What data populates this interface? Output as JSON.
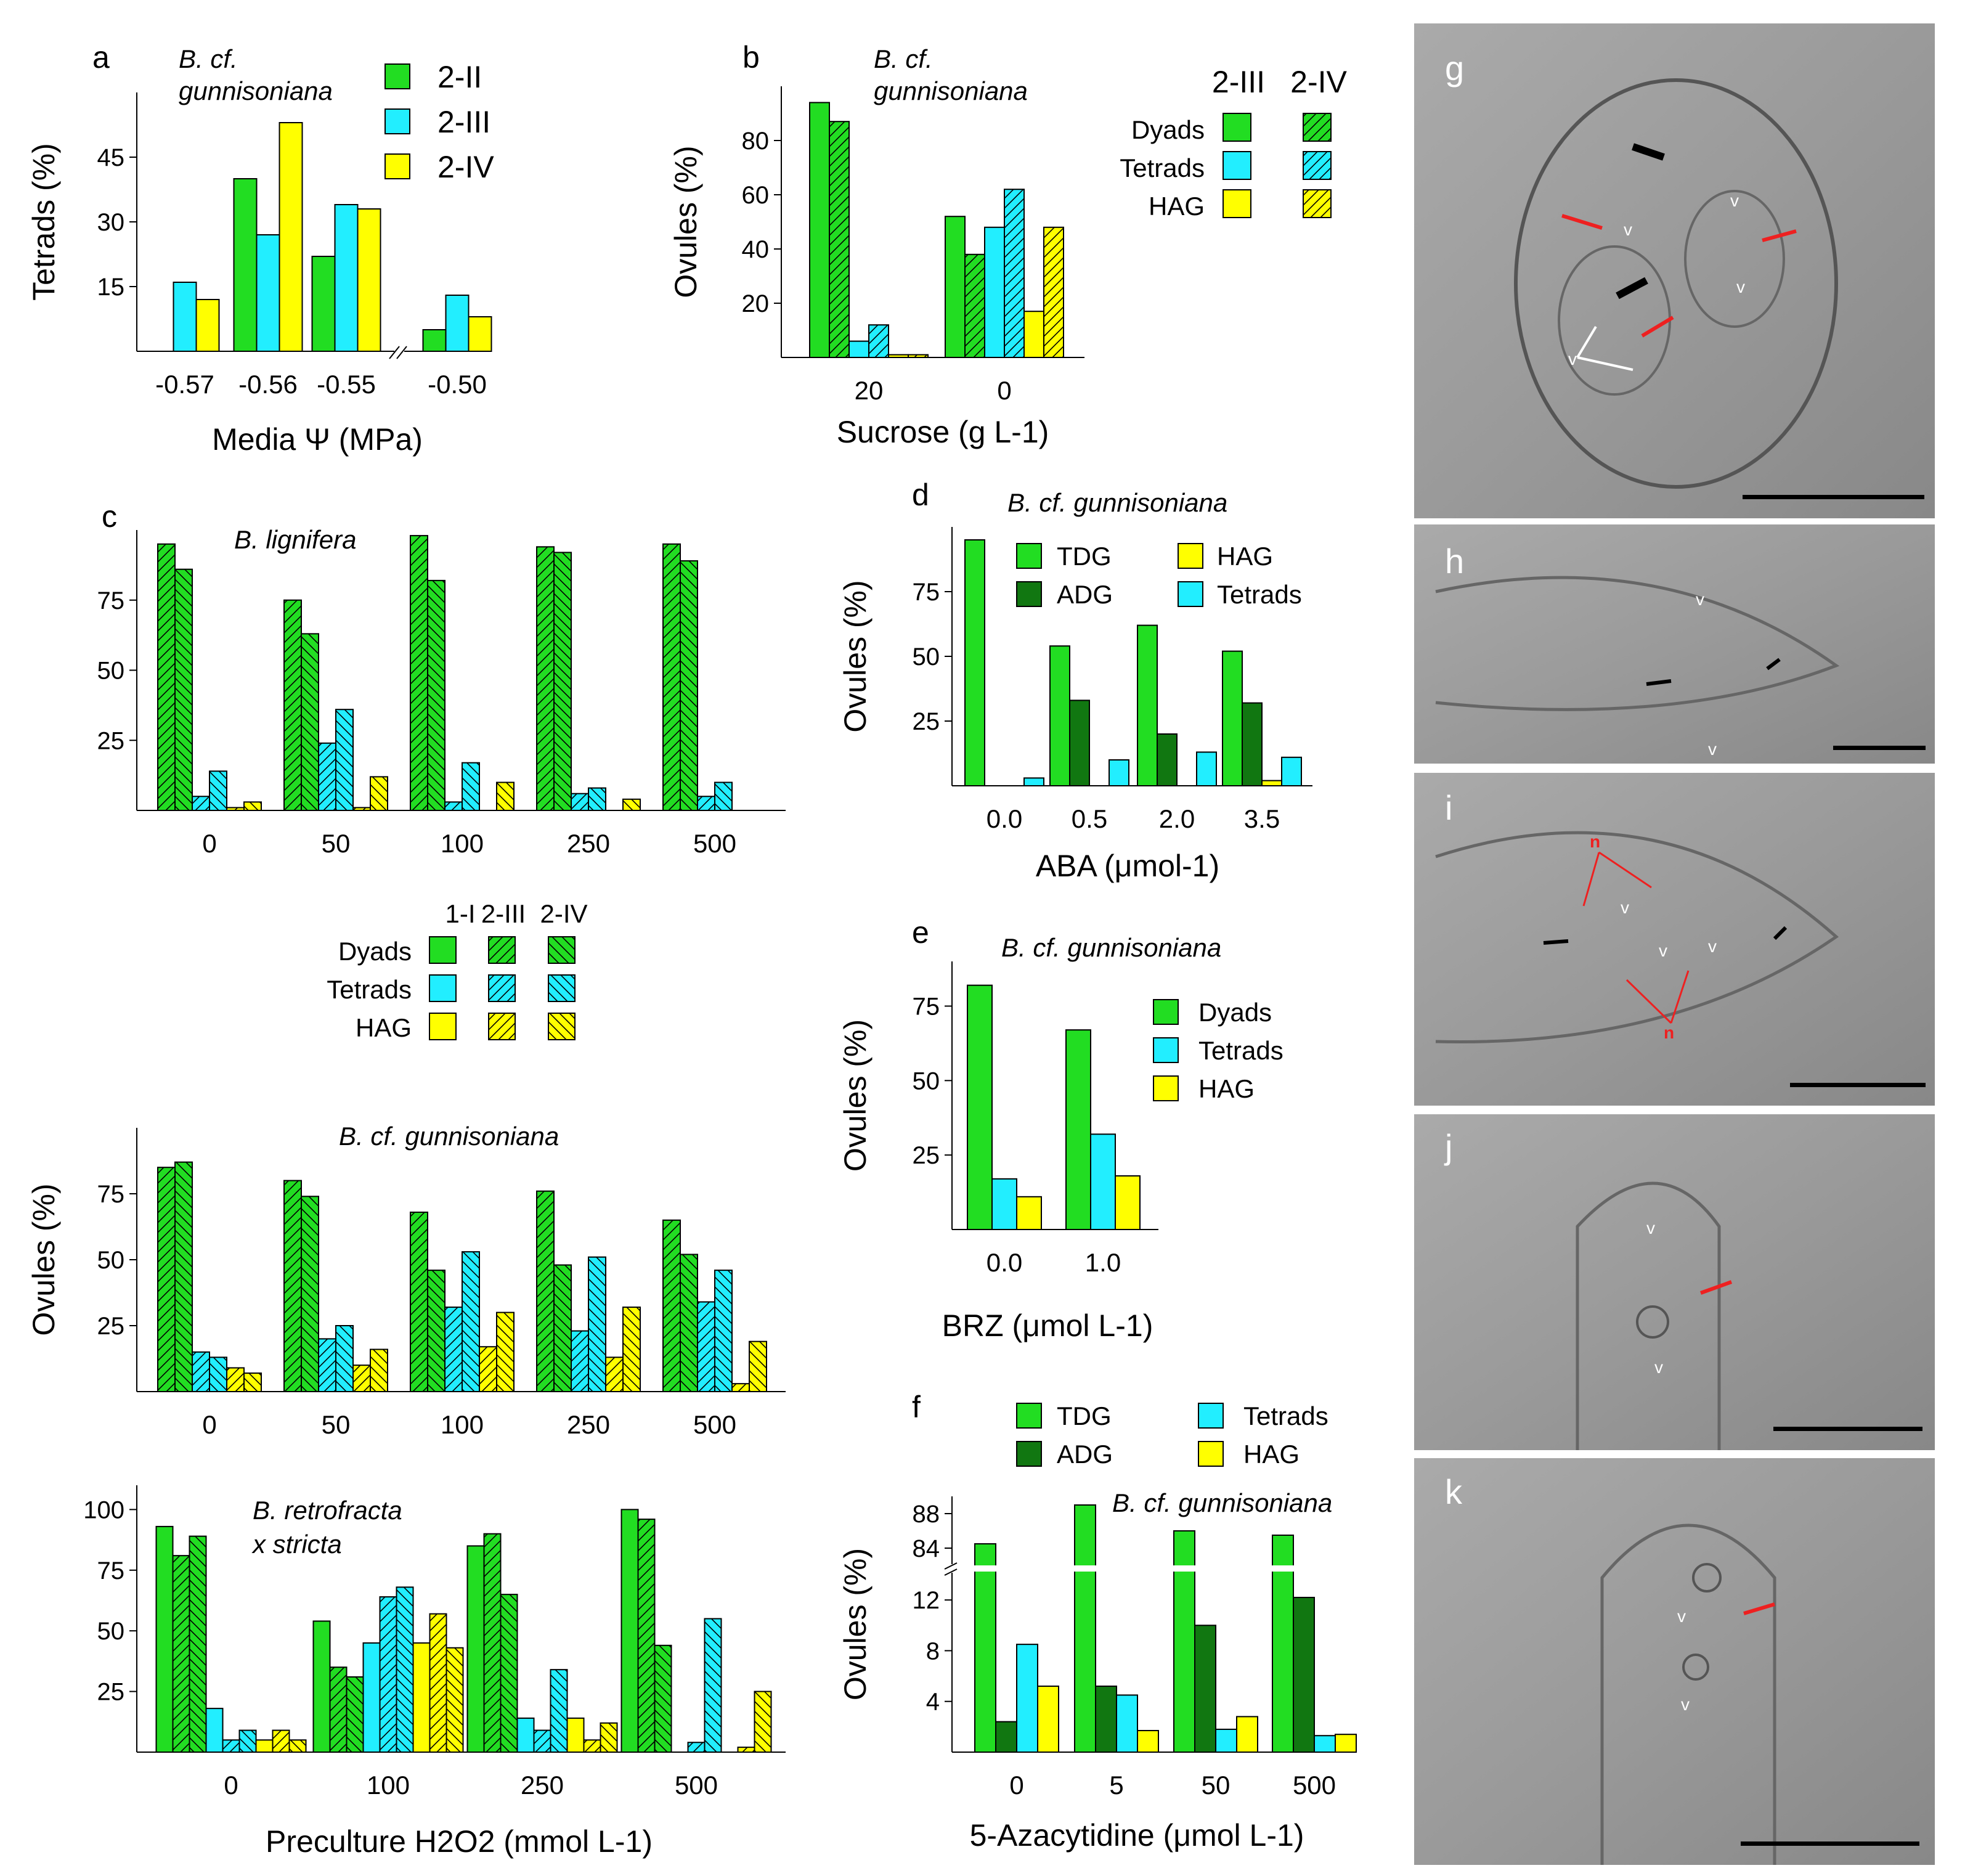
{
  "colors": {
    "green": "#22DD22",
    "dark_green": "#117711",
    "cyan": "#22EEFF",
    "yellow": "#FFFF00",
    "white": "#FFFFFF"
  },
  "patterns": {
    "solid": "solid",
    "hatch_fwd": "hatch_fwd",
    "hatch_back": "hatch_back",
    "chevron": "chevron"
  },
  "micrograph_panels": [
    {
      "letter": "g",
      "labels": [
        "v",
        "v",
        "v",
        "v"
      ]
    },
    {
      "letter": "h",
      "labels": [
        "v",
        "v"
      ]
    },
    {
      "letter": "i",
      "labels": [
        "n",
        "n",
        "v",
        "v",
        "v"
      ]
    },
    {
      "letter": "j",
      "labels": [
        "v",
        "v"
      ]
    },
    {
      "letter": "k",
      "labels": [
        "v",
        "v"
      ]
    }
  ],
  "chart_data": [
    {
      "id": "a",
      "type": "bar",
      "panel_letter": "a",
      "title": "B. cf. gunnisoniana",
      "title_lines": [
        "B. cf.",
        "gunnisoniana"
      ],
      "xlabel": "Media Ψ (MPa)",
      "ylabel": "Tetrads (%)",
      "ylim": [
        0,
        60
      ],
      "yticks": [
        15,
        30,
        45
      ],
      "axis_break_after": 2,
      "categories": [
        "-0.57",
        "-0.56",
        "-0.55",
        "-0.50"
      ],
      "series": [
        {
          "name": "2-II",
          "color": "green",
          "pattern": "solid",
          "values": [
            null,
            40,
            22,
            5
          ]
        },
        {
          "name": "2-III",
          "color": "cyan",
          "pattern": "solid",
          "values": [
            16,
            27,
            34,
            13
          ]
        },
        {
          "name": "2-IV",
          "color": "yellow",
          "pattern": "solid",
          "values": [
            12,
            53,
            33,
            8
          ]
        }
      ]
    },
    {
      "id": "b",
      "type": "bar",
      "panel_letter": "b",
      "title": "B. cf. gunnisoniana",
      "title_lines": [
        "B. cf.",
        "gunnisoniana"
      ],
      "xlabel": "Sucrose (g L-1)",
      "ylabel": "Ovules (%)",
      "ylim": [
        0,
        100
      ],
      "yticks": [
        20,
        40,
        60,
        80
      ],
      "categories": [
        "20",
        "0"
      ],
      "legend_columns": [
        "2-III",
        "2-IV"
      ],
      "legend_rows": [
        "Dyads",
        "Tetrads",
        "HAG"
      ],
      "series": [
        {
          "name": "Dyads 2-III",
          "color": "green",
          "pattern": "solid",
          "values": [
            94,
            52
          ]
        },
        {
          "name": "Dyads 2-IV",
          "color": "green",
          "pattern": "hatch_fwd",
          "values": [
            87,
            38
          ]
        },
        {
          "name": "Tetrads 2-III",
          "color": "cyan",
          "pattern": "solid",
          "values": [
            6,
            48
          ]
        },
        {
          "name": "Tetrads 2-IV",
          "color": "cyan",
          "pattern": "hatch_fwd",
          "values": [
            12,
            62
          ]
        },
        {
          "name": "HAG 2-III",
          "color": "yellow",
          "pattern": "solid",
          "values": [
            1,
            17
          ]
        },
        {
          "name": "HAG 2-IV",
          "color": "yellow",
          "pattern": "hatch_fwd",
          "values": [
            1,
            48
          ]
        }
      ]
    },
    {
      "id": "c1",
      "type": "bar",
      "panel_letter": "c",
      "title": "B. lignifera",
      "title_lines": [
        "B. lignifera"
      ],
      "xlabel": "",
      "ylabel": "",
      "ylim": [
        0,
        100
      ],
      "yticks": [
        25,
        50,
        75
      ],
      "categories": [
        "0",
        "50",
        "100",
        "250",
        "500"
      ],
      "series": [
        {
          "name": "Dyads 2-III",
          "color": "green",
          "pattern": "hatch_fwd",
          "values": [
            95,
            75,
            98,
            94,
            95
          ]
        },
        {
          "name": "Dyads 2-IV",
          "color": "green",
          "pattern": "hatch_back",
          "values": [
            86,
            63,
            82,
            92,
            89
          ]
        },
        {
          "name": "Tetrads 2-III",
          "color": "cyan",
          "pattern": "hatch_fwd",
          "values": [
            5,
            24,
            3,
            6,
            5
          ]
        },
        {
          "name": "Tetrads 2-IV",
          "color": "cyan",
          "pattern": "hatch_back",
          "values": [
            14,
            36,
            17,
            8,
            10
          ]
        },
        {
          "name": "HAG 2-III",
          "color": "yellow",
          "pattern": "hatch_fwd",
          "values": [
            1,
            1,
            null,
            null,
            null
          ]
        },
        {
          "name": "HAG 2-IV",
          "color": "yellow",
          "pattern": "hatch_back",
          "values": [
            3,
            12,
            10,
            4,
            null
          ]
        }
      ]
    },
    {
      "id": "c2",
      "type": "bar",
      "panel_letter": "",
      "title": "B. cf. gunnisoniana",
      "title_lines": [
        "B. cf. gunnisoniana"
      ],
      "xlabel": "",
      "ylabel": "Ovules (%)",
      "ylim": [
        0,
        100
      ],
      "yticks": [
        25,
        50,
        75
      ],
      "categories": [
        "0",
        "50",
        "100",
        "250",
        "500"
      ],
      "series": [
        {
          "name": "Dyads 2-III",
          "color": "green",
          "pattern": "hatch_fwd",
          "values": [
            85,
            80,
            68,
            76,
            65
          ]
        },
        {
          "name": "Dyads 2-IV",
          "color": "green",
          "pattern": "hatch_back",
          "values": [
            87,
            74,
            46,
            48,
            52
          ]
        },
        {
          "name": "Tetrads 2-III",
          "color": "cyan",
          "pattern": "hatch_fwd",
          "values": [
            15,
            20,
            32,
            23,
            34
          ]
        },
        {
          "name": "Tetrads 2-IV",
          "color": "cyan",
          "pattern": "hatch_back",
          "values": [
            13,
            25,
            53,
            51,
            46
          ]
        },
        {
          "name": "HAG 2-III",
          "color": "yellow",
          "pattern": "hatch_fwd",
          "values": [
            9,
            10,
            17,
            13,
            3
          ]
        },
        {
          "name": "HAG 2-IV",
          "color": "yellow",
          "pattern": "hatch_back",
          "values": [
            7,
            16,
            30,
            32,
            19
          ]
        }
      ]
    },
    {
      "id": "c3",
      "type": "bar",
      "panel_letter": "",
      "title": "B. retrofracta x stricta",
      "title_lines": [
        "B. retrofracta",
        "x stricta"
      ],
      "xlabel": "Preculture H2O2 (mmol L-1)",
      "ylabel": "",
      "ylim": [
        0,
        110
      ],
      "yticks": [
        25,
        50,
        75,
        100
      ],
      "categories": [
        "0",
        "100",
        "250",
        "500"
      ],
      "series": [
        {
          "name": "Dyads 1-I",
          "color": "green",
          "pattern": "solid",
          "values": [
            93,
            54,
            85,
            100
          ]
        },
        {
          "name": "Dyads 2-III",
          "color": "green",
          "pattern": "hatch_fwd",
          "values": [
            81,
            35,
            90,
            96
          ]
        },
        {
          "name": "Dyads 2-IV",
          "color": "green",
          "pattern": "hatch_back",
          "values": [
            89,
            31,
            65,
            44
          ]
        },
        {
          "name": "Tetrads 1-I",
          "color": "cyan",
          "pattern": "solid",
          "values": [
            18,
            45,
            14,
            null
          ]
        },
        {
          "name": "Tetrads 2-III",
          "color": "cyan",
          "pattern": "hatch_fwd",
          "values": [
            5,
            64,
            9,
            4
          ]
        },
        {
          "name": "Tetrads 2-IV",
          "color": "cyan",
          "pattern": "hatch_back",
          "values": [
            9,
            68,
            34,
            55
          ]
        },
        {
          "name": "HAG 1-I",
          "color": "yellow",
          "pattern": "solid",
          "values": [
            5,
            45,
            14,
            null
          ]
        },
        {
          "name": "HAG 2-III",
          "color": "yellow",
          "pattern": "hatch_fwd",
          "values": [
            9,
            57,
            5,
            2
          ]
        },
        {
          "name": "HAG 2-IV",
          "color": "yellow",
          "pattern": "hatch_back",
          "values": [
            5,
            43,
            12,
            25
          ]
        }
      ]
    },
    {
      "id": "c_legend",
      "type": "legend",
      "columns": [
        "1-I",
        "2-III",
        "2-IV"
      ],
      "rows": [
        "Dyads",
        "Tetrads",
        "HAG"
      ]
    },
    {
      "id": "d",
      "type": "bar",
      "panel_letter": "d",
      "title": "B. cf. gunnisoniana",
      "title_lines": [
        "B. cf. gunnisoniana"
      ],
      "xlabel": "ABA (μmol-1)",
      "ylabel": "Ovules (%)",
      "ylim": [
        0,
        100
      ],
      "yticks": [
        25,
        50,
        75
      ],
      "categories": [
        "0.0",
        "0.5",
        "2.0",
        "3.5"
      ],
      "series": [
        {
          "name": "TDG",
          "color": "green",
          "pattern": "solid",
          "values": [
            95,
            54,
            62,
            52
          ]
        },
        {
          "name": "ADG",
          "color": "dark_green",
          "pattern": "solid",
          "values": [
            null,
            33,
            20,
            32
          ]
        },
        {
          "name": "HAG",
          "color": "yellow",
          "pattern": "solid",
          "values": [
            null,
            null,
            null,
            2
          ]
        },
        {
          "name": "Tetrads",
          "color": "cyan",
          "pattern": "solid",
          "values": [
            3,
            10,
            13,
            11
          ]
        }
      ]
    },
    {
      "id": "e",
      "type": "bar",
      "panel_letter": "e",
      "title": "B. cf. gunnisoniana",
      "title_lines": [
        "B. cf. gunnisoniana"
      ],
      "xlabel": "BRZ (μmol L-1)",
      "ylabel": "Ovules (%)",
      "ylim": [
        0,
        90
      ],
      "yticks": [
        25,
        50,
        75
      ],
      "categories": [
        "0.0",
        "1.0"
      ],
      "series": [
        {
          "name": "Dyads",
          "color": "green",
          "pattern": "solid",
          "values": [
            82,
            67
          ]
        },
        {
          "name": "Tetrads",
          "color": "cyan",
          "pattern": "solid",
          "values": [
            17,
            32
          ]
        },
        {
          "name": "HAG",
          "color": "yellow",
          "pattern": "solid",
          "values": [
            11,
            18
          ]
        }
      ]
    },
    {
      "id": "f",
      "type": "bar",
      "panel_letter": "f",
      "title": "B. cf. gunnisoniana",
      "title_lines": [
        "B. cf. gunnisoniana"
      ],
      "xlabel": "5-Azacytidine (μmol L-1)",
      "ylabel": "Ovules (%)",
      "ylim": [
        0,
        14
      ],
      "upper_ylim": [
        82,
        90
      ],
      "yticks": [
        4,
        8,
        12
      ],
      "upper_yticks": [
        84,
        88
      ],
      "categories": [
        "0",
        "5",
        "50",
        "500"
      ],
      "series": [
        {
          "name": "TDG",
          "color": "green",
          "pattern": "solid",
          "values": [
            84.5,
            89,
            86,
            85.5
          ]
        },
        {
          "name": "ADG",
          "color": "dark_green",
          "pattern": "solid",
          "values": [
            2.4,
            5.2,
            10,
            12.2
          ]
        },
        {
          "name": "Tetrads",
          "color": "cyan",
          "pattern": "solid",
          "values": [
            8.5,
            4.5,
            1.8,
            1.3
          ]
        },
        {
          "name": "HAG",
          "color": "yellow",
          "pattern": "solid",
          "values": [
            5.2,
            1.7,
            2.8,
            1.4
          ]
        }
      ]
    }
  ]
}
